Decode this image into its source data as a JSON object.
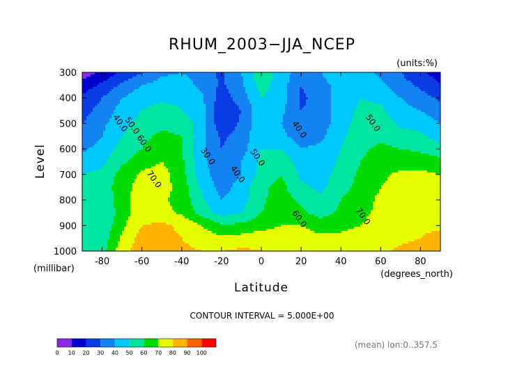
{
  "chart_data": {
    "type": "heatmap",
    "title": "RHUM_2003−JJA_NCEP",
    "units_label": "(units:%)",
    "xlabel": "Latitude",
    "ylabel": "Level",
    "x_units": "(degrees_north)",
    "y_units": "(millibar)",
    "contour_interval_text": "CONTOUR INTERVAL = 5.000E+00",
    "mean_note": "(mean) lon:0..357.5",
    "xlim": [
      -90,
      90
    ],
    "ylim": [
      1000,
      300
    ],
    "x_ticks": [
      "-80",
      "-60",
      "-40",
      "-20",
      "0",
      "20",
      "40",
      "60",
      "80"
    ],
    "x_tick_values": [
      -80,
      -60,
      -40,
      -20,
      0,
      20,
      40,
      60,
      80
    ],
    "y_ticks": [
      "300",
      "400",
      "500",
      "600",
      "700",
      "800",
      "900",
      "1000"
    ],
    "y_tick_values": [
      300,
      400,
      500,
      600,
      700,
      800,
      900,
      1000
    ],
    "levels": [
      0,
      10,
      20,
      30,
      40,
      50,
      60,
      70,
      80,
      90,
      100
    ],
    "level_labels": [
      "0",
      "10",
      "20",
      "30",
      "40",
      "50",
      "60",
      "70",
      "80",
      "90",
      "100"
    ],
    "colors": [
      "#8a2be2",
      "#0000d2",
      "#0a3ce6",
      "#1482f0",
      "#00c8ff",
      "#00e6a0",
      "#00dc00",
      "#e6ff00",
      "#ffb400",
      "#ff6400",
      "#ff0000"
    ],
    "contour_labels": [
      {
        "text": "40.0",
        "x": -72,
        "y": 505
      },
      {
        "text": "50.0",
        "x": -66,
        "y": 515
      },
      {
        "text": "60.0",
        "x": -60,
        "y": 585
      },
      {
        "text": "70.0",
        "x": -55,
        "y": 725
      },
      {
        "text": "30.0",
        "x": -28,
        "y": 635
      },
      {
        "text": "40.0",
        "x": -13,
        "y": 705
      },
      {
        "text": "50.0",
        "x": -3,
        "y": 640
      },
      {
        "text": "40.0",
        "x": 18,
        "y": 530
      },
      {
        "text": "60.0",
        "x": 18,
        "y": 880
      },
      {
        "text": "70.0",
        "x": 50,
        "y": 870
      },
      {
        "text": "50.0",
        "x": 55,
        "y": 505
      }
    ],
    "grid": {
      "lats": [
        -90,
        -80,
        -70,
        -60,
        -50,
        -40,
        -30,
        -20,
        -10,
        0,
        10,
        20,
        30,
        40,
        50,
        60,
        70,
        80,
        90
      ],
      "plevs": [
        300,
        350,
        400,
        450,
        500,
        550,
        600,
        650,
        700,
        750,
        800,
        850,
        900,
        950,
        1000
      ],
      "values": [
        [
          5,
          12,
          22,
          30,
          38,
          40,
          36,
          28,
          40,
          58,
          45,
          35,
          40,
          48,
          45,
          38,
          30,
          22,
          15
        ],
        [
          14,
          22,
          32,
          40,
          44,
          44,
          38,
          28,
          38,
          54,
          45,
          30,
          36,
          45,
          48,
          42,
          34,
          28,
          20
        ],
        [
          22,
          30,
          40,
          46,
          48,
          48,
          42,
          25,
          35,
          50,
          45,
          28,
          34,
          45,
          50,
          48,
          40,
          34,
          28
        ],
        [
          26,
          34,
          44,
          50,
          54,
          50,
          44,
          20,
          30,
          48,
          42,
          30,
          34,
          45,
          52,
          52,
          44,
          40,
          34
        ],
        [
          30,
          38,
          46,
          54,
          58,
          56,
          45,
          22,
          32,
          48,
          40,
          32,
          35,
          46,
          54,
          55,
          48,
          46,
          40
        ],
        [
          33,
          40,
          50,
          58,
          62,
          60,
          44,
          28,
          34,
          48,
          42,
          36,
          38,
          48,
          56,
          58,
          54,
          52,
          46
        ],
        [
          38,
          44,
          54,
          60,
          64,
          60,
          42,
          30,
          36,
          50,
          50,
          40,
          42,
          50,
          58,
          62,
          60,
          58,
          52
        ],
        [
          44,
          48,
          58,
          66,
          70,
          62,
          43,
          33,
          40,
          52,
          56,
          45,
          44,
          52,
          60,
          65,
          66,
          66,
          64
        ],
        [
          50,
          52,
          64,
          72,
          74,
          64,
          44,
          34,
          40,
          54,
          60,
          48,
          46,
          54,
          62,
          68,
          72,
          72,
          70
        ],
        [
          54,
          54,
          66,
          74,
          74,
          66,
          48,
          36,
          44,
          58,
          63,
          52,
          48,
          56,
          64,
          70,
          74,
          74,
          72
        ],
        [
          56,
          52,
          66,
          76,
          72,
          66,
          52,
          40,
          46,
          58,
          65,
          58,
          52,
          60,
          66,
          72,
          75,
          76,
          76
        ],
        [
          56,
          50,
          65,
          76,
          74,
          68,
          56,
          46,
          50,
          60,
          66,
          62,
          56,
          62,
          68,
          72,
          74,
          76,
          76
        ],
        [
          56,
          52,
          68,
          80,
          82,
          78,
          70,
          62,
          62,
          66,
          70,
          70,
          66,
          68,
          70,
          74,
          76,
          78,
          78
        ],
        [
          56,
          54,
          72,
          84,
          84,
          80,
          76,
          72,
          74,
          76,
          76,
          74,
          72,
          72,
          74,
          76,
          78,
          80,
          84
        ],
        [
          56,
          56,
          76,
          86,
          86,
          82,
          80,
          80,
          82,
          80,
          78,
          76,
          74,
          74,
          76,
          78,
          82,
          84,
          88
        ]
      ]
    }
  }
}
